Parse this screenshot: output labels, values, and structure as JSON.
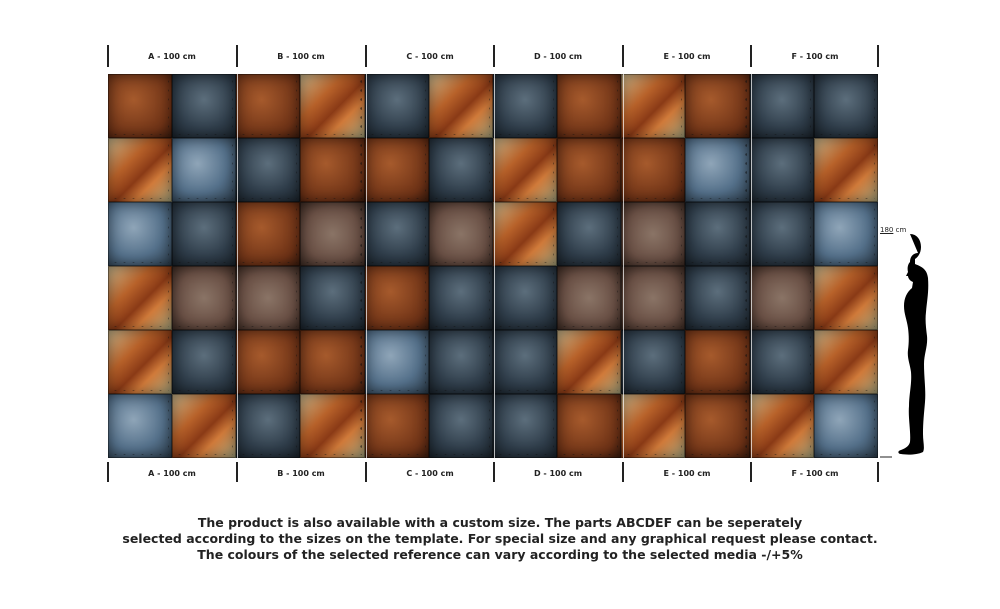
{
  "panels_top": [
    "A - 100 cm",
    "B - 100 cm",
    "C - 100 cm",
    "D - 100 cm",
    "E - 100 cm",
    "F - 100 cm"
  ],
  "panels_bottom": [
    "A - 100 cm",
    "B - 100 cm",
    "C - 100 cm",
    "D - 100 cm",
    "E - 100 cm",
    "F - 100 cm"
  ],
  "height_label": {
    "value": "180",
    "unit": " cm"
  },
  "note": [
    "The product is also available with a custom size. The parts ABCDEF can be seperately",
    "selected according to the sizes on the template. For special size and any graphical request please contact.",
    "The colours of the selected reference can vary according to the selected media -/+5%"
  ]
}
